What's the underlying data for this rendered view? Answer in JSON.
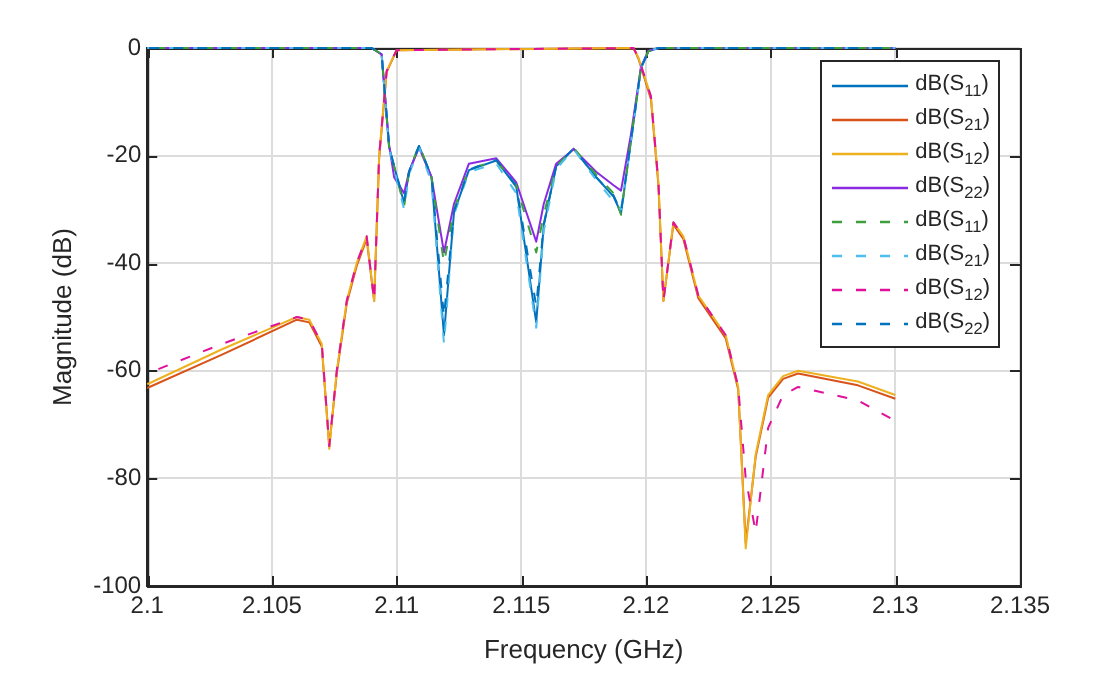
{
  "chart_data": {
    "type": "line",
    "xlabel": "Frequency (GHz)",
    "ylabel": "Magnitude (dB)",
    "xlim": [
      2.1,
      2.135
    ],
    "xticks": [
      2.1,
      2.105,
      2.11,
      2.115,
      2.12,
      2.125,
      2.13,
      2.135
    ],
    "ylim": [
      -100,
      0
    ],
    "yticks": [
      -100,
      -80,
      -60,
      -40,
      -20,
      0
    ],
    "grid": true,
    "legend": "top right",
    "marker": "none",
    "series": [
      {
        "name": "dB(S$_{11}$)",
        "color": "#0072bd",
        "line_style": "solid",
        "x": [
          2.1,
          2.109,
          2.1094,
          2.1097,
          2.1099,
          2.1103,
          2.1105,
          2.1109,
          2.1114,
          2.1119,
          2.1123,
          2.1129,
          2.114,
          2.1148,
          2.1156,
          2.1159,
          2.1164,
          2.1171,
          2.118,
          2.1187,
          2.119,
          2.1194,
          2.1198,
          2.1201,
          2.1205,
          2.13
        ],
        "values": [
          0,
          0,
          -1.2,
          -18.4,
          -22,
          -28.8,
          -23,
          -18.2,
          -24,
          -53.4,
          -30.6,
          -22.7,
          -20.9,
          -25.8,
          -51,
          -33,
          -22,
          -18.7,
          -24,
          -27.6,
          -30.7,
          -17.2,
          -3.7,
          -0.6,
          0,
          0
        ]
      },
      {
        "name": "dB(S$_{21}$)",
        "color": "#d95319",
        "line_style": "solid",
        "x": [
          2.1,
          2.103,
          2.106,
          2.1065,
          2.107,
          2.1073,
          2.1076,
          2.108,
          2.1084,
          2.1088,
          2.1091,
          2.1093,
          2.1096,
          2.11,
          2.1195,
          2.1197,
          2.1202,
          2.1205,
          2.1207,
          2.1211,
          2.1215,
          2.1221,
          2.1232,
          2.1237,
          2.124,
          2.1244,
          2.1249,
          2.1255,
          2.1261,
          2.1285,
          2.13
        ],
        "values": [
          -63.2,
          -57,
          -50.5,
          -51,
          -55.5,
          -74,
          -60.5,
          -47.5,
          -40.5,
          -35.5,
          -47,
          -20.5,
          -4.5,
          -0.4,
          0,
          -2,
          -9.5,
          -25.5,
          -47,
          -32.8,
          -35.5,
          -46.5,
          -54,
          -63.5,
          -92,
          -76,
          -65,
          -61.5,
          -60.5,
          -62.7,
          -65.2
        ]
      },
      {
        "name": "dB(S$_{12}$)",
        "color": "#edb120",
        "line_style": "solid",
        "x": [
          2.1,
          2.103,
          2.106,
          2.1065,
          2.107,
          2.1073,
          2.1076,
          2.108,
          2.1084,
          2.1088,
          2.1091,
          2.1093,
          2.1096,
          2.11,
          2.1195,
          2.1197,
          2.1202,
          2.1205,
          2.1207,
          2.1211,
          2.1215,
          2.1221,
          2.1232,
          2.1237,
          2.124,
          2.1244,
          2.1249,
          2.1255,
          2.1261,
          2.1285,
          2.13
        ],
        "values": [
          -62.5,
          -56,
          -50,
          -50.5,
          -55,
          -74.5,
          -60,
          -47,
          -40,
          -35,
          -47,
          -20,
          -4.3,
          -0.4,
          0,
          -1.8,
          -9,
          -25,
          -47,
          -32.4,
          -35,
          -46,
          -53.4,
          -63,
          -93,
          -75.5,
          -64.5,
          -61,
          -60,
          -62,
          -64.5
        ]
      },
      {
        "name": "dB(S$_{22}$)",
        "color": "#8a2be2",
        "line_style": "solid",
        "x": [
          2.1,
          2.109,
          2.1094,
          2.1097,
          2.1099,
          2.1103,
          2.1105,
          2.1109,
          2.1114,
          2.1119,
          2.1123,
          2.1129,
          2.114,
          2.1148,
          2.1156,
          2.1159,
          2.1164,
          2.1171,
          2.118,
          2.1187,
          2.119,
          2.1194,
          2.1198,
          2.1201,
          2.1205,
          2.13
        ],
        "values": [
          0,
          0,
          -1.2,
          -18,
          -24,
          -27,
          -23,
          -18.5,
          -24,
          -38,
          -29,
          -21.5,
          -20.5,
          -25,
          -36,
          -29,
          -21.5,
          -18.8,
          -23,
          -25.5,
          -26.5,
          -16,
          -3.5,
          -0.5,
          0,
          0
        ]
      },
      {
        "name": "dB(S$_{11}$)",
        "color": "#3ca03c",
        "line_style": "dashed",
        "x": [
          2.1,
          2.109,
          2.1094,
          2.1097,
          2.1099,
          2.1103,
          2.1105,
          2.1109,
          2.1114,
          2.1119,
          2.1123,
          2.1129,
          2.114,
          2.1148,
          2.1156,
          2.1159,
          2.1164,
          2.1171,
          2.118,
          2.1187,
          2.119,
          2.1194,
          2.1198,
          2.1201,
          2.1205,
          2.13
        ],
        "values": [
          0,
          0,
          -1.2,
          -18.5,
          -22,
          -29.5,
          -23,
          -18,
          -24,
          -40,
          -30,
          -22.5,
          -21,
          -25.5,
          -38,
          -31,
          -22,
          -18.6,
          -23.5,
          -27,
          -31,
          -17,
          -3.7,
          -0.6,
          0,
          0
        ]
      },
      {
        "name": "dB(S$_{21}$)",
        "color": "#4dbeee",
        "line_style": "dashed",
        "x": [
          2.1,
          2.109,
          2.1094,
          2.1097,
          2.1099,
          2.1103,
          2.1105,
          2.1109,
          2.1114,
          2.1119,
          2.1123,
          2.1129,
          2.114,
          2.1148,
          2.1156,
          2.1159,
          2.1164,
          2.1171,
          2.118,
          2.1187,
          2.119,
          2.1194,
          2.1198,
          2.1201,
          2.1205,
          2.13
        ],
        "values": [
          0,
          0,
          -1.2,
          -18.6,
          -22.5,
          -30,
          -23.5,
          -18.4,
          -25,
          -55,
          -31,
          -23,
          -21.5,
          -27,
          -52,
          -34,
          -22.5,
          -18.8,
          -24.5,
          -28.5,
          -30,
          -17.5,
          -3.8,
          -0.6,
          0,
          0
        ]
      },
      {
        "name": "dB(S$_{12}$)",
        "color": "#e0109b",
        "line_style": "dashed",
        "x": [
          2.1,
          2.103,
          2.106,
          2.1065,
          2.107,
          2.1073,
          2.1076,
          2.108,
          2.1084,
          2.1088,
          2.1091,
          2.1093,
          2.1096,
          2.11,
          2.1195,
          2.1197,
          2.1202,
          2.1205,
          2.1207,
          2.1211,
          2.1215,
          2.1221,
          2.1232,
          2.1237,
          2.124,
          2.1244,
          2.1249,
          2.1255,
          2.1261,
          2.1285,
          2.13
        ],
        "values": [
          -60.5,
          -55,
          -50,
          -50.5,
          -55,
          -74,
          -60,
          -47,
          -40,
          -35,
          -47,
          -20,
          -4.3,
          -0.4,
          0,
          -1.8,
          -9,
          -25,
          -47,
          -32.4,
          -35,
          -46,
          -53.4,
          -63,
          -80,
          -90,
          -70.6,
          -64.5,
          -63,
          -65.5,
          -69.3
        ]
      },
      {
        "name": "dB(S$_{22}$)",
        "color": "#0072bd",
        "line_style": "dashed",
        "x": [
          2.1,
          2.109,
          2.1094,
          2.1097,
          2.1099,
          2.1103,
          2.1105,
          2.1109,
          2.1114,
          2.1119,
          2.1123,
          2.1129,
          2.114,
          2.1148,
          2.1156,
          2.1159,
          2.1164,
          2.1171,
          2.118,
          2.1187,
          2.119,
          2.1194,
          2.1198,
          2.1201,
          2.1205,
          2.13
        ],
        "values": [
          0,
          0,
          -1.2,
          -18.3,
          -22,
          -28.5,
          -23,
          -18.2,
          -23.8,
          -50,
          -30.4,
          -22.6,
          -20.8,
          -25.6,
          -48,
          -32.8,
          -22,
          -18.7,
          -24,
          -27.4,
          -30.5,
          -17.2,
          -3.7,
          -0.6,
          0,
          0
        ]
      }
    ]
  }
}
